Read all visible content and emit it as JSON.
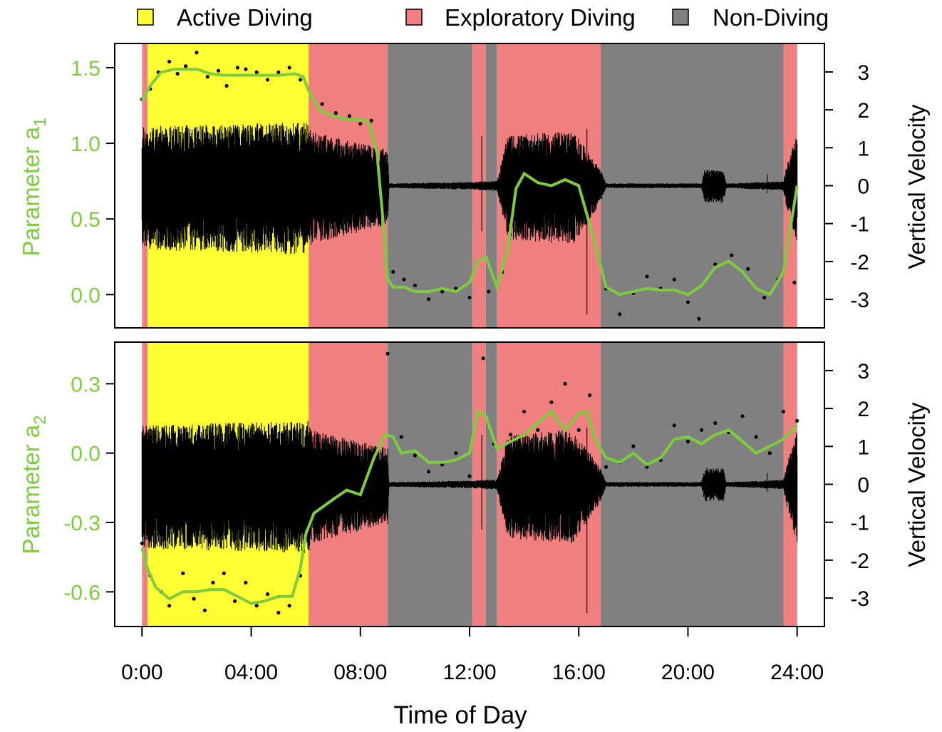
{
  "colors": {
    "active": "#ffff33",
    "exploratory": "#f08080",
    "non_diving": "#808080",
    "smooth": "#7ccc3e",
    "points": "#000000",
    "velocity": "#000000"
  },
  "legend": [
    {
      "label": "Active Diving",
      "color": "#ffff33"
    },
    {
      "label": "Exploratory Diving",
      "color": "#f08080"
    },
    {
      "label": "Non-Diving",
      "color": "#808080"
    }
  ],
  "xaxis": {
    "title": "Time of Day",
    "range_hours": [
      -1,
      25
    ],
    "ticks": [
      {
        "hour": 0,
        "label": "0:00"
      },
      {
        "hour": 4,
        "label": "04:00"
      },
      {
        "hour": 8,
        "label": "08:00"
      },
      {
        "hour": 12,
        "label": "12:00"
      },
      {
        "hour": 16,
        "label": "16:00"
      },
      {
        "hour": 20,
        "label": "20:00"
      },
      {
        "hour": 24,
        "label": "24:00"
      }
    ]
  },
  "chart_data": [
    {
      "type": "line",
      "ylabel_left": "Parameter a",
      "ylabel_left_sub": "1",
      "ylabel_right": "Vertical Velocity",
      "yleft_range": [
        -0.22,
        1.66
      ],
      "yleft_ticks": [
        {
          "v": 0.0,
          "label": "0.0"
        },
        {
          "v": 0.5,
          "label": "0.5"
        },
        {
          "v": 1.0,
          "label": "1.0"
        },
        {
          "v": 1.5,
          "label": "1.5"
        }
      ],
      "yright_range": [
        -3.75,
        3.75
      ],
      "yright_ticks": [
        {
          "v": -3,
          "label": "-3"
        },
        {
          "v": -2,
          "label": "-2"
        },
        {
          "v": -1,
          "label": "-1"
        },
        {
          "v": 0,
          "label": "0"
        },
        {
          "v": 1,
          "label": "1"
        },
        {
          "v": 2,
          "label": "2"
        },
        {
          "v": 3,
          "label": "3"
        }
      ],
      "states": [
        {
          "start": 0.0,
          "end": 0.2,
          "state": "exploratory"
        },
        {
          "start": 0.2,
          "end": 6.1,
          "state": "active"
        },
        {
          "start": 6.1,
          "end": 9.0,
          "state": "exploratory"
        },
        {
          "start": 9.0,
          "end": 12.1,
          "state": "non_diving"
        },
        {
          "start": 12.1,
          "end": 12.6,
          "state": "exploratory"
        },
        {
          "start": 12.6,
          "end": 13.0,
          "state": "non_diving"
        },
        {
          "start": 13.0,
          "end": 16.8,
          "state": "exploratory"
        },
        {
          "start": 16.8,
          "end": 23.5,
          "state": "non_diving"
        },
        {
          "start": 23.5,
          "end": 24.0,
          "state": "exploratory"
        }
      ],
      "smooth": [
        [
          0.0,
          1.28
        ],
        [
          0.3,
          1.38
        ],
        [
          0.7,
          1.47
        ],
        [
          1.2,
          1.49
        ],
        [
          2.0,
          1.49
        ],
        [
          2.5,
          1.46
        ],
        [
          3.0,
          1.45
        ],
        [
          4.0,
          1.45
        ],
        [
          5.0,
          1.45
        ],
        [
          5.6,
          1.46
        ],
        [
          5.9,
          1.44
        ],
        [
          6.1,
          1.35
        ],
        [
          6.5,
          1.22
        ],
        [
          7.0,
          1.18
        ],
        [
          7.5,
          1.16
        ],
        [
          8.0,
          1.16
        ],
        [
          8.3,
          1.14
        ],
        [
          8.6,
          0.95
        ],
        [
          8.8,
          0.55
        ],
        [
          9.0,
          0.1
        ],
        [
          9.2,
          0.05
        ],
        [
          9.6,
          0.05
        ],
        [
          10.0,
          0.02
        ],
        [
          10.5,
          0.02
        ],
        [
          11.0,
          0.04
        ],
        [
          11.5,
          0.02
        ],
        [
          12.0,
          0.08
        ],
        [
          12.3,
          0.22
        ],
        [
          12.6,
          0.25
        ],
        [
          13.0,
          0.05
        ],
        [
          13.4,
          0.3
        ],
        [
          13.7,
          0.7
        ],
        [
          14.0,
          0.8
        ],
        [
          14.5,
          0.74
        ],
        [
          15.0,
          0.72
        ],
        [
          15.5,
          0.76
        ],
        [
          16.0,
          0.72
        ],
        [
          16.5,
          0.4
        ],
        [
          17.0,
          0.05
        ],
        [
          17.5,
          0.0
        ],
        [
          18.0,
          0.02
        ],
        [
          18.5,
          0.04
        ],
        [
          19.0,
          0.03
        ],
        [
          19.5,
          0.03
        ],
        [
          20.0,
          0.0
        ],
        [
          20.5,
          0.06
        ],
        [
          21.0,
          0.18
        ],
        [
          21.5,
          0.22
        ],
        [
          22.0,
          0.15
        ],
        [
          22.5,
          0.04
        ],
        [
          23.0,
          0.0
        ],
        [
          23.5,
          0.15
        ],
        [
          24.0,
          0.72
        ]
      ],
      "points": [
        [
          0.0,
          1.29
        ],
        [
          0.3,
          1.36
        ],
        [
          0.6,
          1.47
        ],
        [
          1.0,
          1.54
        ],
        [
          1.3,
          1.46
        ],
        [
          1.6,
          1.51
        ],
        [
          2.0,
          1.6
        ],
        [
          2.4,
          1.44
        ],
        [
          2.8,
          1.48
        ],
        [
          3.1,
          1.38
        ],
        [
          3.5,
          1.5
        ],
        [
          3.8,
          1.49
        ],
        [
          4.2,
          1.47
        ],
        [
          4.6,
          1.42
        ],
        [
          5.0,
          1.47
        ],
        [
          5.4,
          1.5
        ],
        [
          5.8,
          1.42
        ],
        [
          6.6,
          1.26
        ],
        [
          7.1,
          1.2
        ],
        [
          7.6,
          1.18
        ],
        [
          8.0,
          1.13
        ],
        [
          8.4,
          1.15
        ],
        [
          9.2,
          0.15
        ],
        [
          9.6,
          0.1
        ],
        [
          10.0,
          0.06
        ],
        [
          10.5,
          -0.03
        ],
        [
          11.0,
          0.02
        ],
        [
          11.5,
          0.04
        ],
        [
          12.0,
          -0.02
        ],
        [
          12.7,
          0.02
        ],
        [
          13.2,
          0.15
        ],
        [
          14.0,
          0.82
        ],
        [
          14.6,
          0.75
        ],
        [
          15.0,
          0.73
        ],
        [
          15.5,
          0.73
        ],
        [
          16.0,
          0.72
        ],
        [
          17.0,
          0.04
        ],
        [
          17.5,
          -0.13
        ],
        [
          18.0,
          0.01
        ],
        [
          18.5,
          0.12
        ],
        [
          19.0,
          0.04
        ],
        [
          19.5,
          0.1
        ],
        [
          20.0,
          -0.05
        ],
        [
          20.4,
          -0.16
        ],
        [
          21.0,
          0.2
        ],
        [
          21.6,
          0.26
        ],
        [
          22.2,
          0.17
        ],
        [
          22.8,
          -0.02
        ],
        [
          23.3,
          0.1
        ],
        [
          23.9,
          0.08
        ]
      ],
      "velocity_profile": [
        [
          0.0,
          1.3
        ],
        [
          6.1,
          1.4
        ],
        [
          6.2,
          1.2
        ],
        [
          9.0,
          0.8
        ],
        [
          9.05,
          0.05
        ],
        [
          12.1,
          0.08
        ],
        [
          12.6,
          0.1
        ],
        [
          13.0,
          0.1
        ],
        [
          13.4,
          1.1
        ],
        [
          15.8,
          1.2
        ],
        [
          16.8,
          0.35
        ],
        [
          17.0,
          0.05
        ],
        [
          20.5,
          0.05
        ],
        [
          20.6,
          0.35
        ],
        [
          21.3,
          0.35
        ],
        [
          21.4,
          0.05
        ],
        [
          23.5,
          0.1
        ],
        [
          23.6,
          0.4
        ],
        [
          24.0,
          1.2
        ]
      ]
    },
    {
      "type": "line",
      "ylabel_left": "Parameter a",
      "ylabel_left_sub": "2",
      "ylabel_right": "Vertical Velocity",
      "yleft_range": [
        -0.75,
        0.48
      ],
      "yleft_ticks": [
        {
          "v": -0.6,
          "label": "-0.6"
        },
        {
          "v": -0.3,
          "label": "-0.3"
        },
        {
          "v": 0.0,
          "label": "0.0"
        },
        {
          "v": 0.3,
          "label": "0.3"
        }
      ],
      "yright_range": [
        -3.75,
        3.75
      ],
      "yright_ticks": [
        {
          "v": -3,
          "label": "-3"
        },
        {
          "v": -2,
          "label": "-2"
        },
        {
          "v": -1,
          "label": "-1"
        },
        {
          "v": 0,
          "label": "0"
        },
        {
          "v": 1,
          "label": "1"
        },
        {
          "v": 2,
          "label": "2"
        },
        {
          "v": 3,
          "label": "3"
        }
      ],
      "states": [
        {
          "start": 0.0,
          "end": 0.2,
          "state": "exploratory"
        },
        {
          "start": 0.2,
          "end": 6.1,
          "state": "active"
        },
        {
          "start": 6.1,
          "end": 9.0,
          "state": "exploratory"
        },
        {
          "start": 9.0,
          "end": 12.1,
          "state": "non_diving"
        },
        {
          "start": 12.1,
          "end": 12.6,
          "state": "exploratory"
        },
        {
          "start": 12.6,
          "end": 13.0,
          "state": "non_diving"
        },
        {
          "start": 13.0,
          "end": 16.8,
          "state": "exploratory"
        },
        {
          "start": 16.8,
          "end": 23.5,
          "state": "non_diving"
        },
        {
          "start": 23.5,
          "end": 24.0,
          "state": "exploratory"
        }
      ],
      "smooth": [
        [
          0.0,
          -0.41
        ],
        [
          0.2,
          -0.5
        ],
        [
          0.5,
          -0.58
        ],
        [
          1.0,
          -0.63
        ],
        [
          1.5,
          -0.6
        ],
        [
          2.0,
          -0.6
        ],
        [
          2.5,
          -0.59
        ],
        [
          3.0,
          -0.59
        ],
        [
          3.5,
          -0.62
        ],
        [
          4.0,
          -0.65
        ],
        [
          4.5,
          -0.64
        ],
        [
          5.0,
          -0.62
        ],
        [
          5.5,
          -0.62
        ],
        [
          5.8,
          -0.5
        ],
        [
          6.0,
          -0.35
        ],
        [
          6.3,
          -0.26
        ],
        [
          7.0,
          -0.2
        ],
        [
          7.5,
          -0.16
        ],
        [
          8.0,
          -0.18
        ],
        [
          8.5,
          -0.02
        ],
        [
          8.9,
          0.08
        ],
        [
          9.2,
          0.07
        ],
        [
          9.5,
          0.0
        ],
        [
          10.0,
          0.01
        ],
        [
          10.5,
          -0.04
        ],
        [
          11.0,
          -0.04
        ],
        [
          11.5,
          -0.03
        ],
        [
          12.0,
          0.0
        ],
        [
          12.3,
          0.18
        ],
        [
          12.6,
          0.16
        ],
        [
          13.0,
          0.02
        ],
        [
          13.5,
          0.05
        ],
        [
          14.0,
          0.08
        ],
        [
          14.5,
          0.13
        ],
        [
          15.0,
          0.18
        ],
        [
          15.5,
          0.1
        ],
        [
          16.0,
          0.17
        ],
        [
          16.3,
          0.18
        ],
        [
          16.6,
          0.06
        ],
        [
          17.0,
          -0.02
        ],
        [
          17.5,
          -0.04
        ],
        [
          18.0,
          0.0
        ],
        [
          18.5,
          -0.05
        ],
        [
          19.0,
          -0.02
        ],
        [
          19.5,
          0.06
        ],
        [
          20.0,
          0.07
        ],
        [
          20.5,
          0.04
        ],
        [
          21.0,
          0.08
        ],
        [
          21.5,
          0.1
        ],
        [
          22.0,
          0.05
        ],
        [
          22.5,
          0.0
        ],
        [
          23.0,
          0.03
        ],
        [
          23.5,
          0.06
        ],
        [
          24.0,
          0.12
        ]
      ],
      "points": [
        [
          0.0,
          -0.39
        ],
        [
          0.3,
          -0.53
        ],
        [
          0.7,
          -0.6
        ],
        [
          1.0,
          -0.66
        ],
        [
          1.5,
          -0.52
        ],
        [
          1.9,
          -0.63
        ],
        [
          2.3,
          -0.68
        ],
        [
          2.6,
          -0.56
        ],
        [
          3.0,
          -0.52
        ],
        [
          3.4,
          -0.64
        ],
        [
          3.8,
          -0.56
        ],
        [
          4.2,
          -0.66
        ],
        [
          4.6,
          -0.61
        ],
        [
          5.0,
          -0.69
        ],
        [
          5.4,
          -0.66
        ],
        [
          5.8,
          -0.53
        ],
        [
          6.6,
          -0.28
        ],
        [
          7.0,
          -0.21
        ],
        [
          7.5,
          -0.16
        ],
        [
          8.0,
          -0.2
        ],
        [
          8.5,
          -0.2
        ],
        [
          9.0,
          0.43
        ],
        [
          9.5,
          0.07
        ],
        [
          10.0,
          -0.01
        ],
        [
          10.5,
          -0.08
        ],
        [
          11.0,
          -0.05
        ],
        [
          11.5,
          0.0
        ],
        [
          12.0,
          -0.1
        ],
        [
          12.5,
          0.41
        ],
        [
          12.9,
          0.04
        ],
        [
          13.5,
          0.08
        ],
        [
          14.0,
          0.18
        ],
        [
          14.5,
          0.1
        ],
        [
          15.0,
          0.22
        ],
        [
          15.5,
          0.3
        ],
        [
          16.0,
          0.1
        ],
        [
          16.4,
          0.25
        ],
        [
          17.0,
          -0.06
        ],
        [
          17.5,
          -0.04
        ],
        [
          18.0,
          0.03
        ],
        [
          18.5,
          -0.06
        ],
        [
          19.0,
          -0.03
        ],
        [
          19.5,
          0.12
        ],
        [
          20.0,
          0.05
        ],
        [
          20.5,
          0.1
        ],
        [
          21.0,
          0.13
        ],
        [
          21.5,
          0.09
        ],
        [
          22.0,
          0.16
        ],
        [
          22.5,
          0.07
        ],
        [
          23.0,
          0.0
        ],
        [
          23.5,
          0.18
        ],
        [
          24.0,
          0.14
        ]
      ],
      "velocity_profile": [
        [
          0.0,
          1.3
        ],
        [
          6.1,
          1.4
        ],
        [
          6.2,
          1.2
        ],
        [
          9.0,
          0.8
        ],
        [
          9.05,
          0.05
        ],
        [
          12.1,
          0.08
        ],
        [
          12.6,
          0.1
        ],
        [
          13.0,
          0.1
        ],
        [
          13.4,
          1.1
        ],
        [
          15.8,
          1.2
        ],
        [
          16.8,
          0.35
        ],
        [
          17.0,
          0.05
        ],
        [
          20.5,
          0.05
        ],
        [
          20.6,
          0.35
        ],
        [
          21.3,
          0.35
        ],
        [
          21.4,
          0.05
        ],
        [
          23.5,
          0.1
        ],
        [
          23.6,
          0.4
        ],
        [
          24.0,
          1.2
        ]
      ]
    }
  ]
}
